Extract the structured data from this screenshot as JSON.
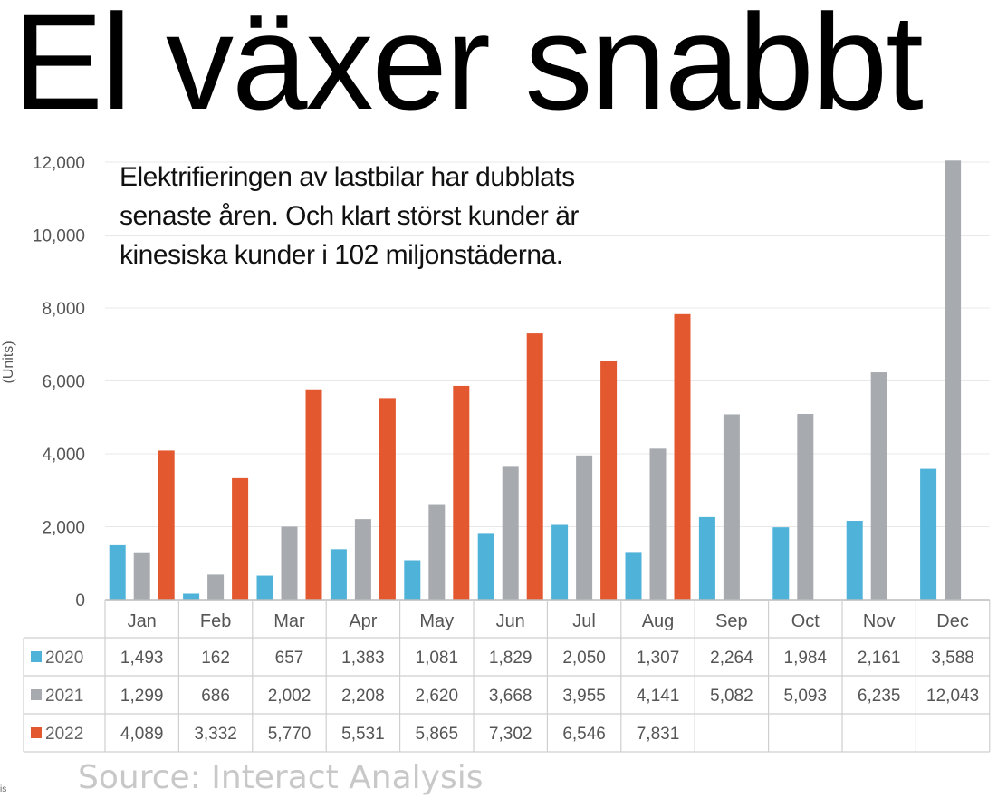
{
  "title": "El växer snabbt",
  "subtitle_lines": [
    "Elektrifieringen av lastbilar har dubblats",
    "senaste åren. Och klart störst kunder är",
    "kinesiska kunder i 102 miljonstäderna."
  ],
  "source": "Source: Interact Analysis",
  "corner_label": "is",
  "chart_data": {
    "type": "bar",
    "ylabel": "(Units)",
    "ylim": [
      0,
      12000
    ],
    "yticks": [
      "0",
      "2,000",
      "4,000",
      "6,000",
      "8,000",
      "10,000",
      "12,000"
    ],
    "categories": [
      "Jan",
      "Feb",
      "Mar",
      "Apr",
      "May",
      "Jun",
      "Jul",
      "Aug",
      "Sep",
      "Oct",
      "Nov",
      "Dec"
    ],
    "series": [
      {
        "name": "2020",
        "color": "#4fb3d9",
        "values": [
          1493,
          162,
          657,
          1383,
          1081,
          1829,
          2050,
          1307,
          2264,
          1984,
          2161,
          3588
        ],
        "labels": [
          "1,493",
          "162",
          "657",
          "1,383",
          "1,081",
          "1,829",
          "2,050",
          "1,307",
          "2,264",
          "1,984",
          "2,161",
          "3,588"
        ]
      },
      {
        "name": "2021",
        "color": "#a7abaf",
        "values": [
          1299,
          686,
          2002,
          2208,
          2620,
          3668,
          3955,
          4141,
          5082,
          5093,
          6235,
          12043
        ],
        "labels": [
          "1,299",
          "686",
          "2,002",
          "2,208",
          "2,620",
          "3,668",
          "3,955",
          "4,141",
          "5,082",
          "5,093",
          "6,235",
          "12,043"
        ]
      },
      {
        "name": "2022",
        "color": "#e4582f",
        "values": [
          4089,
          3332,
          5770,
          5531,
          5865,
          7302,
          6546,
          7831,
          null,
          null,
          null,
          null
        ],
        "labels": [
          "4,089",
          "3,332",
          "5,770",
          "5,531",
          "5,865",
          "7,302",
          "6,546",
          "7,831",
          "",
          "",
          "",
          ""
        ]
      }
    ],
    "grid": true,
    "legend": "table-below"
  }
}
